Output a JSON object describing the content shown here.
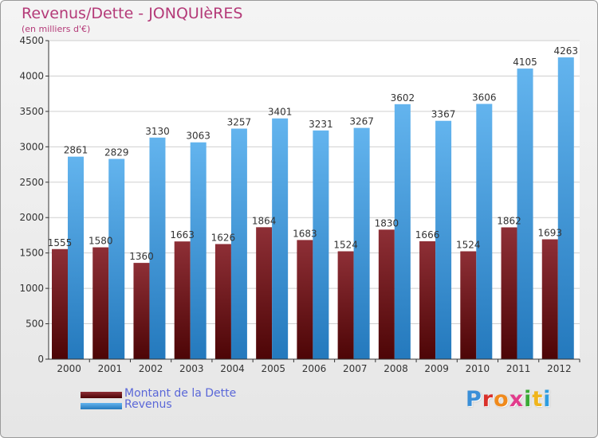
{
  "header": {
    "title": "Revenus/Dette - JONQUIèRES",
    "subtitle": "(en milliers d'€)"
  },
  "legend": {
    "debt_label": "Montant de la Dette",
    "revenue_label": "Revenus"
  },
  "logo": {
    "text": "Proxiti",
    "letter_colors": [
      "#3a8fd8",
      "#d9302a",
      "#f08a1c",
      "#e23b8c",
      "#3aaa35",
      "#f0b51c",
      "#2e9de0"
    ]
  },
  "colors": {
    "debt_top": "#8e2f36",
    "debt_bottom": "#4d0506",
    "revenue_top": "#63b4ee",
    "revenue_bottom": "#2479bd",
    "title": "#b43a78",
    "legend_text": "#5a67d8"
  },
  "chart_data": {
    "type": "bar",
    "categories": [
      "2000",
      "2001",
      "2002",
      "2003",
      "2004",
      "2005",
      "2006",
      "2007",
      "2008",
      "2009",
      "2010",
      "2011",
      "2012"
    ],
    "series": [
      {
        "name": "Montant de la Dette",
        "values": [
          1555,
          1580,
          1360,
          1663,
          1626,
          1864,
          1683,
          1524,
          1830,
          1666,
          1524,
          1862,
          1693
        ]
      },
      {
        "name": "Revenus",
        "values": [
          2861,
          2829,
          3130,
          3063,
          3257,
          3401,
          3231,
          3267,
          3602,
          3367,
          3606,
          4105,
          4263
        ]
      }
    ],
    "ylim": [
      0,
      4500
    ],
    "yticks": [
      0,
      500,
      1000,
      1500,
      2000,
      2500,
      3000,
      3500,
      4000,
      4500
    ],
    "grid": true
  }
}
